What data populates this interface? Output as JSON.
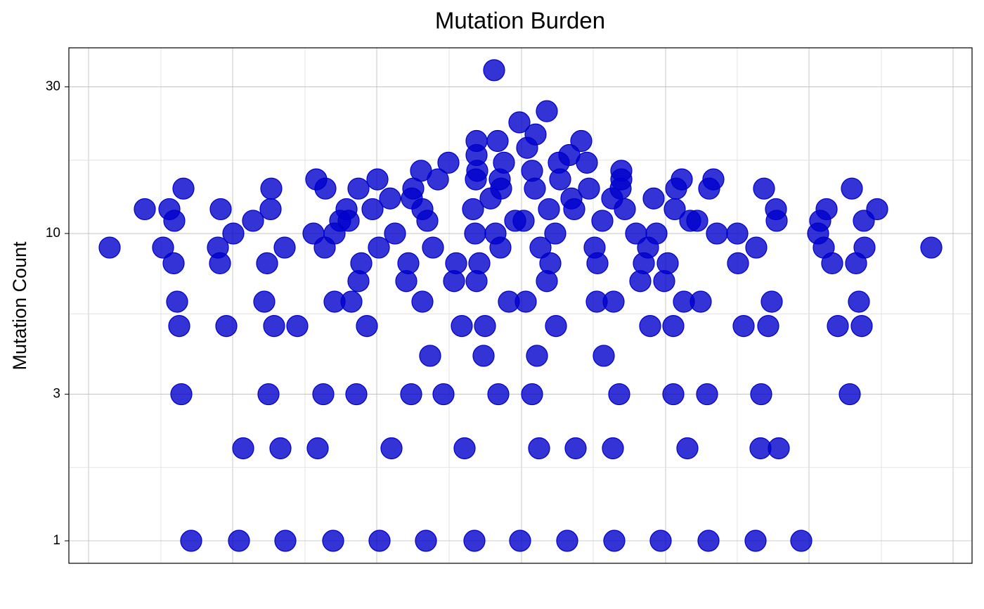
{
  "chart_data": {
    "type": "scatter",
    "title": "Mutation Burden",
    "ylabel": "Mutation Count",
    "color": "#0000cc",
    "log_y": true,
    "grid": true,
    "xlim": [
      -644,
      641
    ],
    "ylim": [
      0.845,
      40.2
    ],
    "xgrid_major": [
      -616,
      -411,
      -206,
      0,
      205,
      409,
      614
    ],
    "xgrid_minor": [
      -513,
      -308,
      -103,
      102,
      307,
      512
    ],
    "yticks": [
      1,
      3,
      10,
      30
    ],
    "x": [
      -470,
      -402,
      -336,
      -268,
      -202,
      -136,
      -67,
      -2,
      65,
      132,
      198,
      266,
      333,
      398,
      -396,
      -343,
      -290,
      -185,
      -81,
      25,
      77,
      130,
      236,
      340,
      366,
      -484,
      -360,
      -282,
      -235,
      -157,
      -111,
      -33,
      15,
      139,
      216,
      264,
      341,
      467,
      -130,
      -54,
      22,
      117,
      -487,
      -420,
      -352,
      -319,
      -220,
      -85,
      -52,
      49,
      183,
      216,
      316,
      351,
      450,
      484,
      -490,
      -366,
      -266,
      -242,
      -141,
      -18,
      6,
      107,
      131,
      231,
      255,
      356,
      480,
      -232,
      -164,
      -96,
      -64,
      36,
      169,
      203,
      -495,
      -429,
      -362,
      -228,
      -161,
      -93,
      -60,
      41,
      108,
      174,
      208,
      308,
      442,
      476,
      -586,
      -510,
      -432,
      -337,
      -280,
      -203,
      -126,
      -30,
      27,
      104,
      180,
      334,
      430,
      488,
      583,
      -410,
      -296,
      -266,
      -180,
      -66,
      -37,
      48,
      163,
      192,
      278,
      307,
      422,
      -494,
      -382,
      -258,
      -246,
      -134,
      -9,
      3,
      115,
      240,
      250,
      363,
      425,
      487,
      -536,
      -501,
      -428,
      -357,
      -249,
      -212,
      -141,
      -69,
      39,
      75,
      147,
      218,
      362,
      434,
      506,
      -187,
      -156,
      -44,
      71,
      129,
      188,
      -481,
      -356,
      -279,
      -232,
      -154,
      -29,
      19,
      96,
      141,
      220,
      267,
      345,
      470,
      -292,
      -205,
      -119,
      -65,
      -31,
      55,
      142,
      228,
      273,
      -143,
      -63,
      15,
      142,
      -104,
      -25,
      53,
      93,
      -64,
      68,
      8,
      -64,
      -34,
      85,
      20,
      -3,
      36,
      -39
    ],
    "y": [
      1,
      1,
      1,
      1,
      1,
      1,
      1,
      1,
      1,
      1,
      1,
      1,
      1,
      1,
      2,
      2,
      2,
      2,
      2,
      2,
      2,
      2,
      2,
      2,
      2,
      3,
      3,
      3,
      3,
      3,
      3,
      3,
      3,
      3,
      3,
      3,
      3,
      3,
      4,
      4,
      4,
      4,
      5,
      5,
      5,
      5,
      5,
      5,
      5,
      5,
      5,
      5,
      5,
      5,
      5,
      5,
      6,
      6,
      6,
      6,
      6,
      6,
      6,
      6,
      6,
      6,
      6,
      6,
      6,
      7,
      7,
      7,
      7,
      7,
      7,
      7,
      8,
      8,
      8,
      8,
      8,
      8,
      8,
      8,
      8,
      8,
      8,
      8,
      8,
      8,
      9,
      9,
      9,
      9,
      9,
      9,
      9,
      9,
      9,
      9,
      9,
      9,
      9,
      9,
      9,
      10,
      10,
      10,
      10,
      10,
      10,
      10,
      10,
      10,
      10,
      10,
      10,
      11,
      11,
      11,
      11,
      11,
      11,
      11,
      11,
      11,
      11,
      11,
      11,
      11,
      12,
      12,
      12,
      12,
      12,
      12,
      12,
      12,
      12,
      12,
      12,
      12,
      12,
      12,
      12,
      13,
      13,
      13,
      13,
      13,
      13,
      14,
      14,
      14,
      14,
      14,
      14,
      14,
      14,
      14,
      14,
      14,
      14,
      14,
      15,
      15,
      15,
      15,
      15,
      15,
      15,
      15,
      15,
      16,
      16,
      16,
      16,
      17,
      17,
      17,
      17,
      18,
      18,
      19,
      20,
      20,
      20,
      21,
      23,
      25,
      34
    ]
  }
}
